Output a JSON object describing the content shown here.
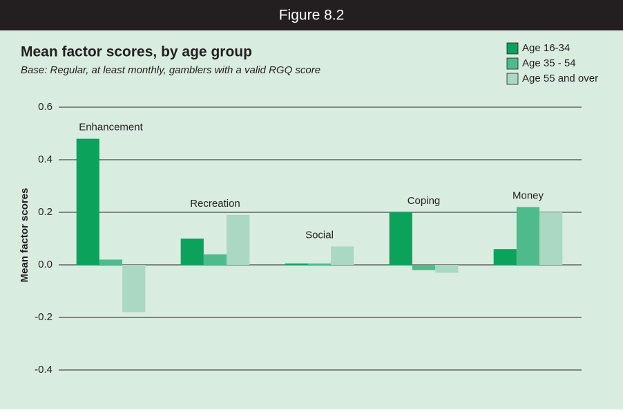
{
  "chart_data": {
    "type": "bar",
    "header": "Figure 8.2",
    "title": "Mean factor scores, by age group",
    "subtitle": "Base: Regular, at least monthly, gamblers with a valid RGQ score",
    "y_label": "Mean factor scores",
    "categories": [
      "Enhancement",
      "Recreation",
      "Social",
      "Coping",
      "Money"
    ],
    "series": [
      {
        "name": "Age 16-34",
        "color": "#0ba25c",
        "values": [
          0.48,
          0.1,
          0.005,
          0.2,
          0.06
        ]
      },
      {
        "name": "Age 35 - 54",
        "color": "#4dbb8b",
        "values": [
          0.02,
          0.04,
          0.005,
          -0.02,
          0.22
        ]
      },
      {
        "name": "Age 55 and over",
        "color": "#aad8c2",
        "values": [
          -0.18,
          0.19,
          0.07,
          -0.03,
          0.2
        ]
      }
    ],
    "ylim": [
      -0.4,
      0.6
    ],
    "yticks": [
      -0.4,
      -0.2,
      {
        "value": 0,
        "label": "0.0"
      },
      0.2,
      0.4,
      0.6
    ],
    "grid": true,
    "legend": "top-right"
  }
}
